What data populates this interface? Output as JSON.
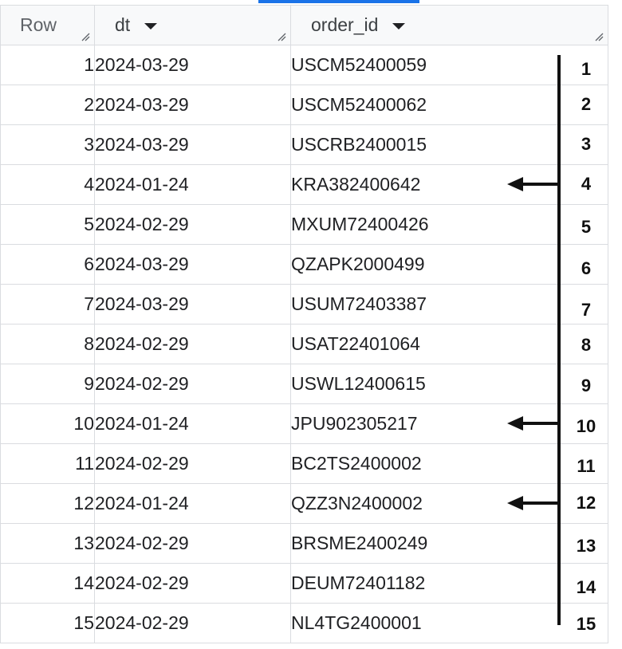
{
  "table": {
    "columns": [
      {
        "label": "Row"
      },
      {
        "label": "dt"
      },
      {
        "label": "order_id"
      }
    ],
    "rows": [
      {
        "row": "1",
        "dt": "2024-03-29",
        "order_id": "USCM52400059"
      },
      {
        "row": "2",
        "dt": "2024-03-29",
        "order_id": "USCM52400062"
      },
      {
        "row": "3",
        "dt": "2024-03-29",
        "order_id": "USCRB2400015"
      },
      {
        "row": "4",
        "dt": "2024-01-24",
        "order_id": "KRA382400642"
      },
      {
        "row": "5",
        "dt": "2024-02-29",
        "order_id": "MXUM72400426"
      },
      {
        "row": "6",
        "dt": "2024-03-29",
        "order_id": "QZAPK2000499"
      },
      {
        "row": "7",
        "dt": "2024-03-29",
        "order_id": "USUM72403387"
      },
      {
        "row": "8",
        "dt": "2024-02-29",
        "order_id": "USAT22401064"
      },
      {
        "row": "9",
        "dt": "2024-02-29",
        "order_id": "USWL12400615"
      },
      {
        "row": "10",
        "dt": "2024-01-24",
        "order_id": "JPU902305217"
      },
      {
        "row": "11",
        "dt": "2024-02-29",
        "order_id": "BC2TS2400002"
      },
      {
        "row": "12",
        "dt": "2024-01-24",
        "order_id": "QZZ3N2400002"
      },
      {
        "row": "13",
        "dt": "2024-02-29",
        "order_id": "BRSME2400249"
      },
      {
        "row": "14",
        "dt": "2024-02-29",
        "order_id": "DEUM72401182"
      },
      {
        "row": "15",
        "dt": "2024-02-29",
        "order_id": "NL4TG2400001"
      }
    ]
  },
  "annotation": {
    "numbers": [
      "1",
      "2",
      "3",
      "4",
      "5",
      "6",
      "7",
      "8",
      "9",
      "10",
      "11",
      "12",
      "13",
      "14",
      "15"
    ],
    "arrow_rows": [
      "4",
      "10",
      "12"
    ],
    "line_color": "#111111"
  },
  "colors": {
    "tab_indicator": "#1a73e8",
    "grid_border": "#dadce0",
    "header_bg": "#f8f9fa"
  }
}
